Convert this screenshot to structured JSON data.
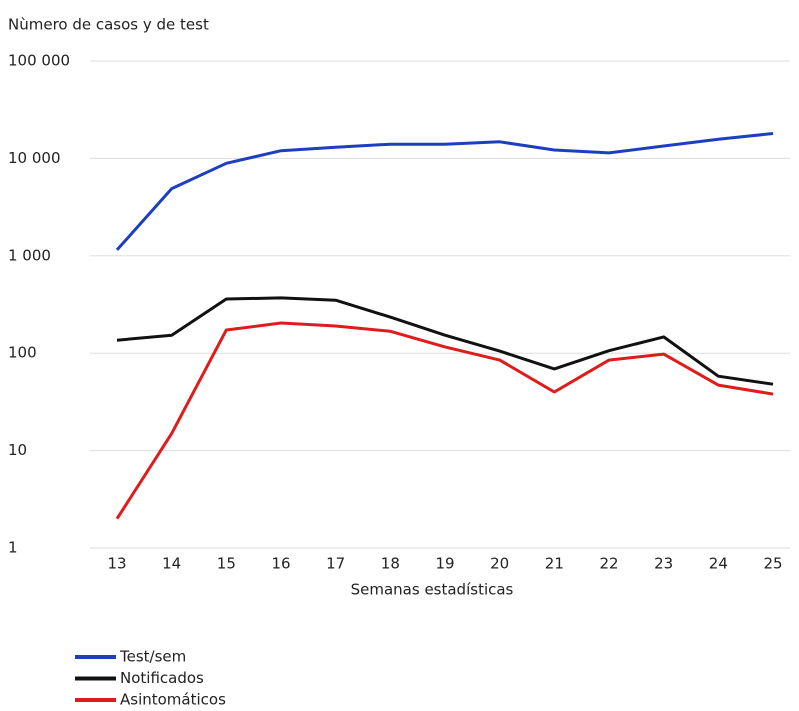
{
  "chart_data": {
    "type": "line",
    "title": "Nùmero de casos y de test",
    "x_label": "Semanas estadísticas",
    "categories": [
      "13",
      "14",
      "15",
      "16",
      "17",
      "18",
      "19",
      "20",
      "21",
      "22",
      "23",
      "24",
      "25"
    ],
    "log_scale": true,
    "grid": true,
    "legend": "bottom-left",
    "ylim": [
      1,
      100000
    ],
    "yticks": [
      1,
      10,
      100,
      {
        "value": 1000,
        "label": "1 000"
      },
      {
        "value": 10000,
        "label": "10 000"
      },
      {
        "value": 100000,
        "label": "100 000"
      }
    ],
    "series": [
      {
        "name": "Test/sem",
        "color": "#1c3fc0",
        "values": [
          1150,
          4900,
          8900,
          12000,
          13000,
          14000,
          14000,
          14800,
          12200,
          11400,
          13400,
          15700,
          18000
        ]
      },
      {
        "name": "Notificados",
        "color": "#111111",
        "values": [
          136,
          153,
          360,
          370,
          350,
          235,
          153,
          105,
          69,
          106,
          147,
          58,
          48
        ]
      },
      {
        "name": "Asintomáticos",
        "color": "#e01b1b",
        "values": [
          2,
          15,
          173,
          204,
          190,
          168,
          116,
          85,
          40,
          85,
          98,
          47,
          38
        ]
      }
    ]
  }
}
